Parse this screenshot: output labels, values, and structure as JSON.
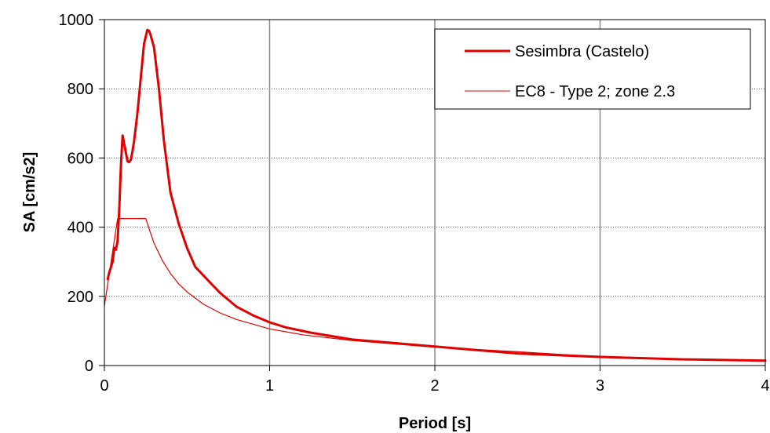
{
  "chart_data": {
    "type": "line",
    "title": "",
    "xlabel": "Period [s]",
    "ylabel": "SA [cm/s2]",
    "xlim": [
      0,
      4
    ],
    "ylim": [
      0,
      1000
    ],
    "xticks": [
      0,
      1,
      2,
      3,
      4
    ],
    "yticks": [
      0,
      200,
      400,
      600,
      800,
      1000
    ],
    "x_tick_labels": [
      "0",
      "1",
      "2",
      "3",
      "4"
    ],
    "y_tick_labels": [
      "0",
      "200",
      "400",
      "600",
      "800",
      "1000"
    ],
    "grid": {
      "vertical": "solid-gray",
      "horizontal": "dotted"
    },
    "legend_position": "top-right",
    "series": [
      {
        "name": "Sesimbra (Castelo)",
        "color": "#e00000",
        "style": "thick",
        "x": [
          0.02,
          0.03,
          0.05,
          0.06,
          0.07,
          0.08,
          0.09,
          0.1,
          0.11,
          0.12,
          0.13,
          0.14,
          0.15,
          0.16,
          0.17,
          0.18,
          0.2,
          0.22,
          0.24,
          0.26,
          0.27,
          0.28,
          0.3,
          0.33,
          0.36,
          0.4,
          0.45,
          0.5,
          0.55,
          0.6,
          0.65,
          0.7,
          0.8,
          0.9,
          1.0,
          1.1,
          1.25,
          1.5,
          1.75,
          2.0,
          2.25,
          2.5,
          3.0,
          3.5,
          4.0
        ],
        "values": [
          250,
          270,
          300,
          340,
          335,
          360,
          450,
          580,
          665,
          640,
          615,
          590,
          588,
          595,
          620,
          650,
          730,
          830,
          930,
          970,
          968,
          955,
          920,
          800,
          650,
          500,
          410,
          340,
          285,
          260,
          235,
          210,
          170,
          145,
          125,
          110,
          95,
          75,
          65,
          55,
          45,
          35,
          25,
          18,
          14
        ]
      },
      {
        "name": "EC8 - Type 2; zone 2.3",
        "color": "#e00000",
        "style": "thin",
        "x": [
          0.0,
          0.02,
          0.04,
          0.06,
          0.08,
          0.1,
          0.15,
          0.2,
          0.25,
          0.3,
          0.35,
          0.4,
          0.45,
          0.5,
          0.6,
          0.7,
          0.8,
          1.0,
          1.2,
          1.5,
          2.0,
          2.5,
          3.0,
          3.5,
          4.0
        ],
        "values": [
          172,
          235,
          298,
          361,
          424,
          425,
          425,
          425,
          425,
          354,
          304,
          266,
          236,
          213,
          177,
          152,
          133,
          106,
          89,
          72,
          53,
          40,
          25,
          18,
          13
        ]
      }
    ]
  }
}
